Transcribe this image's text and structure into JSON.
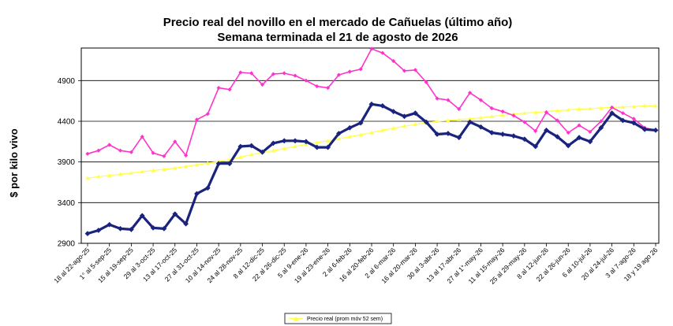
{
  "chart_data": {
    "type": "line",
    "title": "Precio real del novillo en el mercado de Cañuelas (último año)",
    "subtitle": "Semana terminada el 21 de agosto de 2026",
    "ylabel": "$ por kilo vivo",
    "ylim": [
      2900,
      5300
    ],
    "yticks": [
      2900,
      3400,
      3900,
      4400,
      4900
    ],
    "grid": true,
    "x_tick_labels": [
      "18 al 22-ago-25",
      "1° al 5-sep-25",
      "15 al 19-sep-25",
      "29 al 3-oct-25",
      "13 al 17-oct-25",
      "27 al 31-oct-25",
      "10 al 14-nov-25",
      "24 al 28-nov-25",
      "8 al 12-dic-25",
      "22 al 26-dic-25",
      "5 al 9-ene-26",
      "19 al 23-ene-26",
      "2 al 6-feb-26",
      "16 al 20-feb-26",
      "2 al 6-mar-26",
      "16 al 20-mar-26",
      "30 al 3-abr-26",
      "13 al 17-abr-26",
      "27 al 1°-may-26",
      "11 al 15-may-26",
      "25 al 29-may-26",
      "8 al 12-jun-26",
      "22 al 26-jun-26",
      "6 al 10-jul-26",
      "20 al 24-jul-26",
      "3 al 7-ago-26",
      "18 y 19 ago 26"
    ],
    "series": [
      {
        "color": "#ff33cc",
        "marker": "diamond",
        "values": [
          4000,
          4040,
          4110,
          4040,
          4020,
          4210,
          4010,
          3970,
          4150,
          3980,
          4420,
          4490,
          4810,
          4790,
          5000,
          4990,
          4850,
          4980,
          4990,
          4960,
          4900,
          4830,
          4810,
          4970,
          5010,
          5040,
          5290,
          5240,
          5140,
          5020,
          5030,
          4880,
          4680,
          4660,
          4550,
          4750,
          4660,
          4560,
          4520,
          4470,
          4390,
          4280,
          4510,
          4410,
          4260,
          4350,
          4270,
          4400,
          4570,
          4500,
          4430,
          4320,
          4290
        ]
      },
      {
        "color": "#1a237e",
        "marker": "diamond",
        "values": [
          3020,
          3060,
          3130,
          3080,
          3070,
          3240,
          3090,
          3080,
          3260,
          3140,
          3510,
          3580,
          3880,
          3880,
          4090,
          4100,
          4020,
          4130,
          4160,
          4160,
          4150,
          4080,
          4080,
          4250,
          4320,
          4380,
          4610,
          4590,
          4520,
          4460,
          4500,
          4390,
          4240,
          4250,
          4200,
          4390,
          4330,
          4260,
          4240,
          4220,
          4180,
          4090,
          4290,
          4210,
          4100,
          4200,
          4150,
          4320,
          4500,
          4410,
          4380,
          4300,
          4290
        ]
      },
      {
        "name": "Precio real (prom móv 52 sem)",
        "color": "#ffff44",
        "marker": "triangle",
        "values": [
          3700,
          3720,
          3735,
          3750,
          3765,
          3780,
          3795,
          3810,
          3825,
          3845,
          3865,
          3885,
          3905,
          3930,
          3960,
          3990,
          4015,
          4040,
          4065,
          4090,
          4115,
          4140,
          4160,
          4185,
          4210,
          4235,
          4260,
          4290,
          4315,
          4340,
          4360,
          4380,
          4400,
          4410,
          4420,
          4430,
          4445,
          4460,
          4475,
          4490,
          4500,
          4510,
          4520,
          4530,
          4540,
          4550,
          4555,
          4565,
          4570,
          4575,
          4580,
          4590,
          4590
        ]
      }
    ],
    "legend": {
      "position": "bottom"
    }
  }
}
